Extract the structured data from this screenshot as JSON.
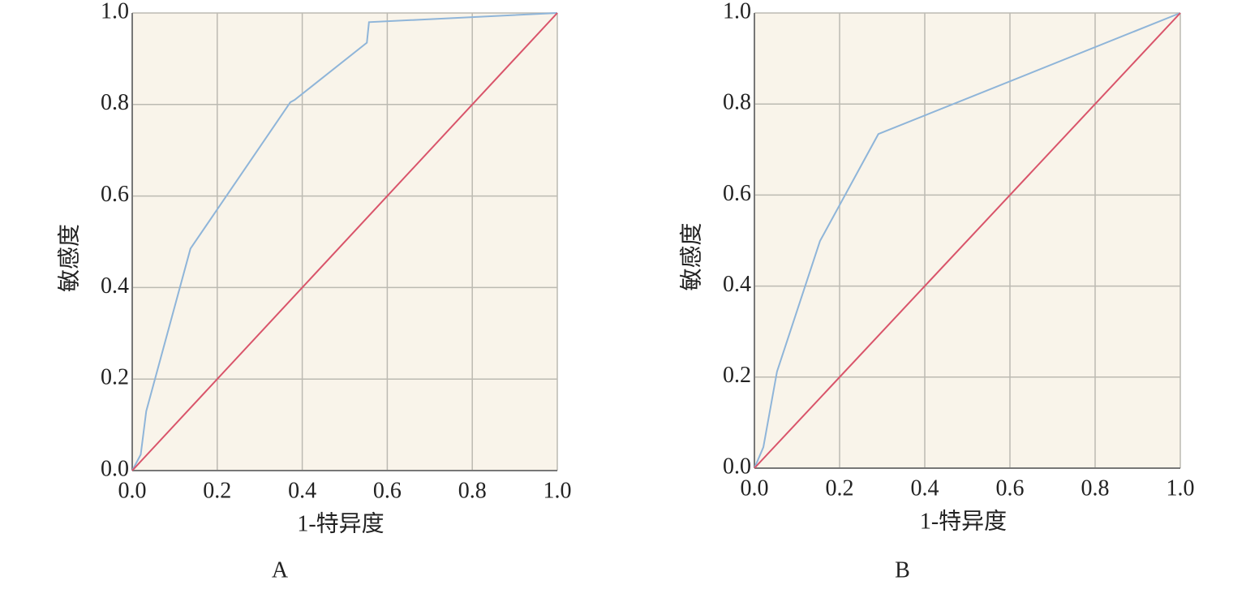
{
  "chart_data": [
    {
      "type": "line",
      "panel": "A",
      "xlabel": "1-特异度",
      "ylabel": "敏感度",
      "xlim": [
        0,
        1
      ],
      "ylim": [
        0,
        1
      ],
      "xticks": [
        {
          "value": 0,
          "label": "0.0"
        },
        0.2,
        0.4,
        0.6,
        0.8,
        {
          "value": 1,
          "label": "1.0"
        }
      ],
      "yticks": [
        {
          "value": 0,
          "label": "0.0"
        },
        0.2,
        0.4,
        0.6,
        0.8,
        {
          "value": 1,
          "label": "1.0"
        }
      ],
      "grid": true,
      "background": "#f9f4ea",
      "series": [
        {
          "color": "#8fb5d9",
          "x": [
            0,
            0.02,
            0.033,
            0.137,
            0.372,
            0.382,
            0.552,
            0.557,
            1
          ],
          "values": [
            0,
            0.035,
            0.13,
            0.485,
            0.805,
            0.81,
            0.935,
            0.98,
            1
          ]
        },
        {
          "color": "#d9546a",
          "x": [
            0,
            1
          ],
          "values": [
            0,
            1
          ]
        }
      ]
    },
    {
      "type": "line",
      "panel": "B",
      "xlabel": "1-特异度",
      "ylabel": "敏感度",
      "xlim": [
        0,
        1
      ],
      "ylim": [
        0,
        1
      ],
      "xticks": [
        {
          "value": 0,
          "label": "0.0"
        },
        0.2,
        0.4,
        0.6,
        0.8,
        {
          "value": 1,
          "label": "1.0"
        }
      ],
      "yticks": [
        {
          "value": 0,
          "label": "0.0"
        },
        0.2,
        0.4,
        0.6,
        0.8,
        {
          "value": 1,
          "label": "1.0"
        }
      ],
      "grid": true,
      "background": "#f9f4ea",
      "series": [
        {
          "color": "#8fb5d9",
          "x": [
            0,
            0.021,
            0.053,
            0.154,
            0.291,
            1
          ],
          "values": [
            0,
            0.046,
            0.212,
            0.499,
            0.734,
            1
          ]
        },
        {
          "color": "#d9546a",
          "x": [
            0,
            1
          ],
          "values": [
            0,
            1
          ]
        }
      ]
    }
  ]
}
